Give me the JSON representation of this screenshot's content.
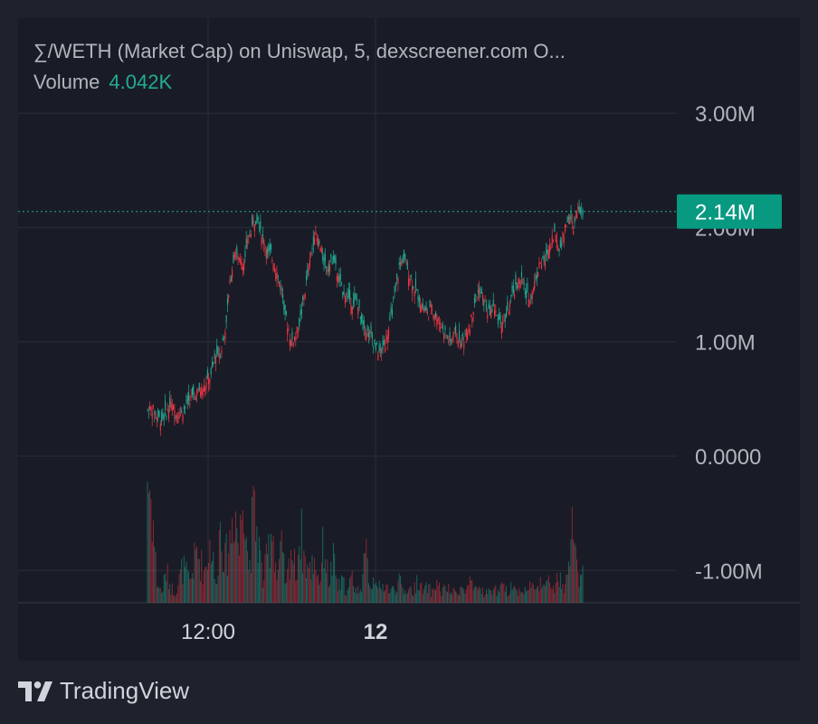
{
  "legend": {
    "title": "∑/WETH (Market Cap) on Uniswap, 5, dexscreener.com  O...",
    "volume_label": "Volume",
    "volume_value": "4.042K"
  },
  "brand": {
    "name": "TradingView"
  },
  "colors": {
    "background": "#191c26",
    "grid": "#2a2e39",
    "axis_text": "#b2b5be",
    "up": "#22ab94",
    "down": "#f23645",
    "price_badge": "#089981"
  },
  "chart_data": {
    "type": "candlestick",
    "title": "∑/WETH (Market Cap) on Uniswap, 5, dexscreener.com",
    "y_tick_labels": [
      "3.00M",
      "2.00M",
      "1.00M",
      "0.0000",
      "-1.00M"
    ],
    "y_ticks": [
      3000000,
      2000000,
      1000000,
      0,
      -1000000
    ],
    "x_tick_labels": [
      "12:00",
      "12"
    ],
    "current_price_label": "2.14M",
    "current_price": 2140000,
    "ylim": [
      -1300000,
      3300000
    ],
    "price_path": [
      [
        0,
        0.4,
        0.55
      ],
      [
        4,
        0.42,
        0.32
      ],
      [
        8,
        0.35,
        0.4
      ],
      [
        12,
        0.32,
        0.4
      ],
      [
        16,
        0.38,
        0.45
      ],
      [
        20,
        0.45,
        0.48
      ],
      [
        24,
        0.38,
        0.32
      ],
      [
        30,
        0.4,
        0.45
      ],
      [
        36,
        0.5,
        0.55
      ],
      [
        42,
        0.55,
        0.58
      ],
      [
        48,
        0.6,
        0.7
      ],
      [
        54,
        0.7,
        0.85
      ],
      [
        58,
        0.9,
        0.95
      ],
      [
        62,
        0.9,
        1.0
      ],
      [
        66,
        1.1,
        1.25
      ],
      [
        70,
        1.5,
        1.6
      ],
      [
        74,
        1.8,
        1.95
      ],
      [
        78,
        1.7,
        1.6
      ],
      [
        82,
        1.7,
        1.9
      ],
      [
        86,
        1.9,
        2.0
      ],
      [
        90,
        2.05,
        2.15
      ],
      [
        94,
        2.1,
        1.95
      ],
      [
        98,
        1.9,
        1.75
      ],
      [
        102,
        1.8,
        1.85
      ],
      [
        106,
        1.75,
        1.7
      ],
      [
        110,
        1.6,
        1.5
      ],
      [
        114,
        1.45,
        1.3
      ],
      [
        118,
        1.2,
        1.1
      ],
      [
        122,
        1.0,
        0.95
      ],
      [
        126,
        1.05,
        1.15
      ],
      [
        130,
        1.2,
        1.35
      ],
      [
        134,
        1.45,
        1.6
      ],
      [
        138,
        1.7,
        1.85
      ],
      [
        142,
        1.95,
        2.0
      ],
      [
        146,
        1.85,
        1.75
      ],
      [
        150,
        1.7,
        1.6
      ],
      [
        154,
        1.65,
        1.7
      ],
      [
        158,
        1.75,
        1.6
      ],
      [
        162,
        1.55,
        1.45
      ],
      [
        166,
        1.45,
        1.4
      ],
      [
        170,
        1.4,
        1.35
      ],
      [
        174,
        1.35,
        1.35
      ],
      [
        178,
        1.35,
        1.25
      ],
      [
        182,
        1.2,
        1.15
      ],
      [
        186,
        1.1,
        1.05
      ],
      [
        190,
        1.05,
        1.0
      ],
      [
        194,
        0.95,
        0.9
      ],
      [
        198,
        0.9,
        0.95
      ],
      [
        202,
        1.0,
        1.1
      ],
      [
        206,
        1.15,
        1.3
      ],
      [
        210,
        1.4,
        1.55
      ],
      [
        214,
        1.65,
        1.8
      ],
      [
        218,
        1.75,
        1.6
      ],
      [
        222,
        1.6,
        1.55
      ],
      [
        226,
        1.5,
        1.4
      ],
      [
        230,
        1.4,
        1.35
      ],
      [
        234,
        1.3,
        1.25
      ],
      [
        238,
        1.25,
        1.35
      ],
      [
        242,
        1.3,
        1.25
      ],
      [
        246,
        1.2,
        1.2
      ],
      [
        250,
        1.15,
        1.1
      ],
      [
        254,
        1.05,
        1.0
      ],
      [
        258,
        1.0,
        1.05
      ],
      [
        262,
        1.1,
        1.0
      ],
      [
        266,
        0.98,
        1.0
      ],
      [
        270,
        1.05,
        1.1
      ],
      [
        274,
        1.15,
        1.25
      ],
      [
        278,
        1.35,
        1.45
      ],
      [
        282,
        1.45,
        1.4
      ],
      [
        286,
        1.35,
        1.3
      ],
      [
        290,
        1.25,
        1.3
      ],
      [
        294,
        1.3,
        1.25
      ],
      [
        298,
        1.2,
        1.15
      ],
      [
        302,
        1.15,
        1.2
      ],
      [
        306,
        1.25,
        1.35
      ],
      [
        310,
        1.4,
        1.45
      ],
      [
        314,
        1.5,
        1.55
      ],
      [
        318,
        1.55,
        1.45
      ],
      [
        322,
        1.4,
        1.35
      ],
      [
        326,
        1.4,
        1.5
      ],
      [
        330,
        1.55,
        1.7
      ],
      [
        334,
        1.7,
        1.65
      ],
      [
        338,
        1.7,
        1.8
      ],
      [
        342,
        1.85,
        1.95
      ],
      [
        346,
        1.95,
        1.85
      ],
      [
        350,
        1.8,
        1.9
      ],
      [
        354,
        1.95,
        2.1
      ],
      [
        358,
        2.1,
        2.0
      ],
      [
        362,
        2.0,
        2.1
      ],
      [
        366,
        2.15,
        2.2
      ],
      [
        370,
        2.1,
        2.14
      ]
    ],
    "volume_path": [
      [
        0,
        1.25
      ],
      [
        4,
        0.95
      ],
      [
        8,
        0.2
      ],
      [
        12,
        0.1
      ],
      [
        16,
        0.3
      ],
      [
        20,
        0.15
      ],
      [
        24,
        0.1
      ],
      [
        30,
        0.35
      ],
      [
        36,
        0.2
      ],
      [
        42,
        0.5
      ],
      [
        48,
        0.3
      ],
      [
        54,
        0.6
      ],
      [
        58,
        0.15
      ],
      [
        62,
        0.8
      ],
      [
        66,
        0.4
      ],
      [
        70,
        0.6
      ],
      [
        74,
        1.0
      ],
      [
        78,
        0.5
      ],
      [
        82,
        1.3
      ],
      [
        86,
        0.3
      ],
      [
        90,
        0.85
      ],
      [
        94,
        0.65
      ],
      [
        98,
        0.2
      ],
      [
        102,
        0.45
      ],
      [
        106,
        0.8
      ],
      [
        110,
        0.25
      ],
      [
        114,
        0.5
      ],
      [
        118,
        0.15
      ],
      [
        122,
        0.55
      ],
      [
        126,
        0.3
      ],
      [
        130,
        0.7
      ],
      [
        134,
        0.4
      ],
      [
        138,
        0.3
      ],
      [
        142,
        0.45
      ],
      [
        146,
        0.2
      ],
      [
        150,
        0.6
      ],
      [
        154,
        0.2
      ],
      [
        158,
        0.4
      ],
      [
        162,
        0.15
      ],
      [
        166,
        0.2
      ],
      [
        170,
        0.1
      ],
      [
        174,
        0.25
      ],
      [
        178,
        0.1
      ],
      [
        182,
        0.2
      ],
      [
        186,
        0.45
      ],
      [
        190,
        0.15
      ],
      [
        194,
        0.3
      ],
      [
        198,
        0.1
      ],
      [
        202,
        0.2
      ],
      [
        206,
        0.1
      ],
      [
        210,
        0.15
      ],
      [
        214,
        0.2
      ],
      [
        218,
        0.1
      ],
      [
        222,
        0.15
      ],
      [
        226,
        0.1
      ],
      [
        230,
        0.25
      ],
      [
        234,
        0.1
      ],
      [
        238,
        0.15
      ],
      [
        242,
        0.1
      ],
      [
        246,
        0.2
      ],
      [
        250,
        0.1
      ],
      [
        254,
        0.15
      ],
      [
        258,
        0.1
      ],
      [
        262,
        0.1
      ],
      [
        266,
        0.15
      ],
      [
        270,
        0.1
      ],
      [
        274,
        0.2
      ],
      [
        278,
        0.1
      ],
      [
        282,
        0.15
      ],
      [
        286,
        0.1
      ],
      [
        290,
        0.1
      ],
      [
        294,
        0.15
      ],
      [
        298,
        0.1
      ],
      [
        302,
        0.15
      ],
      [
        306,
        0.1
      ],
      [
        310,
        0.2
      ],
      [
        314,
        0.1
      ],
      [
        318,
        0.15
      ],
      [
        322,
        0.1
      ],
      [
        326,
        0.2
      ],
      [
        330,
        0.1
      ],
      [
        334,
        0.25
      ],
      [
        338,
        0.15
      ],
      [
        342,
        0.2
      ],
      [
        346,
        0.15
      ],
      [
        350,
        0.25
      ],
      [
        354,
        0.1
      ],
      [
        358,
        0.3
      ],
      [
        362,
        0.9
      ],
      [
        366,
        0.2
      ],
      [
        370,
        0.25
      ]
    ]
  }
}
